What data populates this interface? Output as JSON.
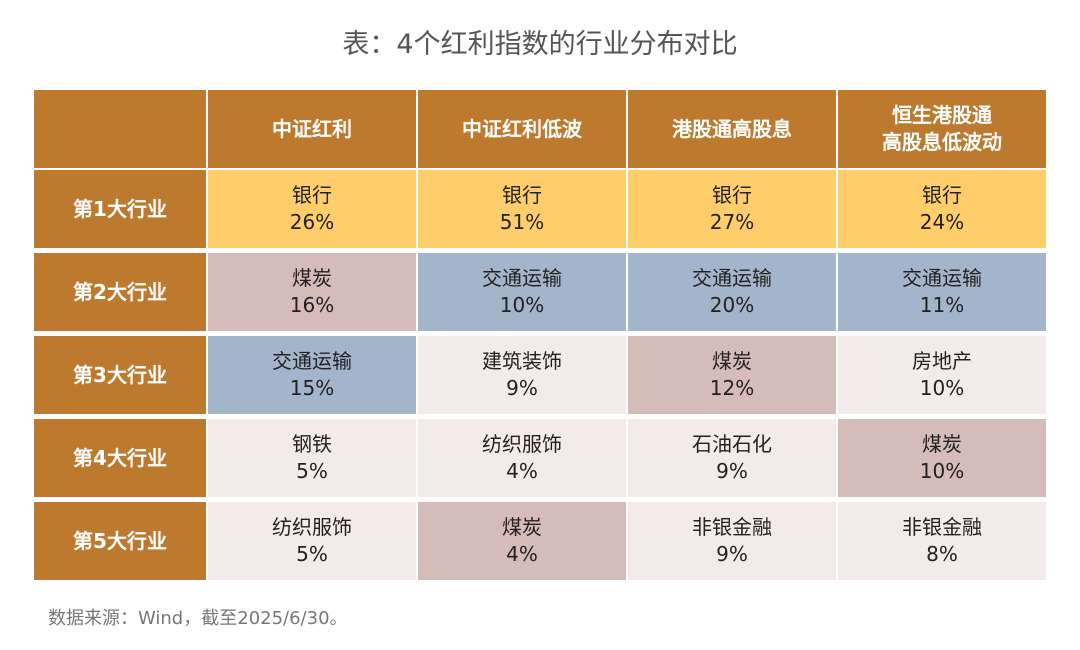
{
  "title": "表：4个红利指数的行业分布对比",
  "chart_data": {
    "type": "table",
    "columns": [
      "",
      "中证红利",
      "中证红利低波",
      "港股通高股息",
      "恒生港股通\n高股息低波动"
    ],
    "rows": [
      {
        "label": "第1大行业",
        "cells": [
          {
            "industry": "银行",
            "pct": "26%",
            "value": 26,
            "category": "bank",
            "highlight": false
          },
          {
            "industry": "银行",
            "pct": "51%",
            "value": 51,
            "category": "bank",
            "highlight": true
          },
          {
            "industry": "银行",
            "pct": "27%",
            "value": 27,
            "category": "bank",
            "highlight": false
          },
          {
            "industry": "银行",
            "pct": "24%",
            "value": 24,
            "category": "bank",
            "highlight": false
          }
        ]
      },
      {
        "label": "第2大行业",
        "cells": [
          {
            "industry": "煤炭",
            "pct": "16%",
            "value": 16,
            "category": "coal",
            "highlight": false
          },
          {
            "industry": "交通运输",
            "pct": "10%",
            "value": 10,
            "category": "trans",
            "highlight": false
          },
          {
            "industry": "交通运输",
            "pct": "20%",
            "value": 20,
            "category": "trans",
            "highlight": false
          },
          {
            "industry": "交通运输",
            "pct": "11%",
            "value": 11,
            "category": "trans",
            "highlight": false
          }
        ]
      },
      {
        "label": "第3大行业",
        "cells": [
          {
            "industry": "交通运输",
            "pct": "15%",
            "value": 15,
            "category": "trans",
            "highlight": false
          },
          {
            "industry": "建筑装饰",
            "pct": "9%",
            "value": 9,
            "category": "other",
            "highlight": false
          },
          {
            "industry": "煤炭",
            "pct": "12%",
            "value": 12,
            "category": "coal",
            "highlight": false
          },
          {
            "industry": "房地产",
            "pct": "10%",
            "value": 10,
            "category": "other",
            "highlight": false
          }
        ]
      },
      {
        "label": "第4大行业",
        "cells": [
          {
            "industry": "钢铁",
            "pct": "5%",
            "value": 5,
            "category": "other",
            "highlight": false
          },
          {
            "industry": "纺织服饰",
            "pct": "4%",
            "value": 4,
            "category": "other",
            "highlight": false
          },
          {
            "industry": "石油石化",
            "pct": "9%",
            "value": 9,
            "category": "other",
            "highlight": false
          },
          {
            "industry": "煤炭",
            "pct": "10%",
            "value": 10,
            "category": "coal",
            "highlight": false
          }
        ]
      },
      {
        "label": "第5大行业",
        "cells": [
          {
            "industry": "纺织服饰",
            "pct": "5%",
            "value": 5,
            "category": "other",
            "highlight": false
          },
          {
            "industry": "煤炭",
            "pct": "4%",
            "value": 4,
            "category": "coal",
            "highlight": false
          },
          {
            "industry": "非银金融",
            "pct": "9%",
            "value": 9,
            "category": "other",
            "highlight": false
          },
          {
            "industry": "非银金融",
            "pct": "8%",
            "value": 8,
            "category": "other",
            "highlight": false
          }
        ]
      }
    ]
  },
  "colors": {
    "header": "#bd7a2e",
    "bank": "#ffce6a",
    "coal": "#d6bcb8",
    "trans": "#a3b5cb",
    "other": "#f2ebe9",
    "highlight_text": "#e8211c"
  },
  "footnote": "数据来源：Wind，截至2025/6/30。"
}
